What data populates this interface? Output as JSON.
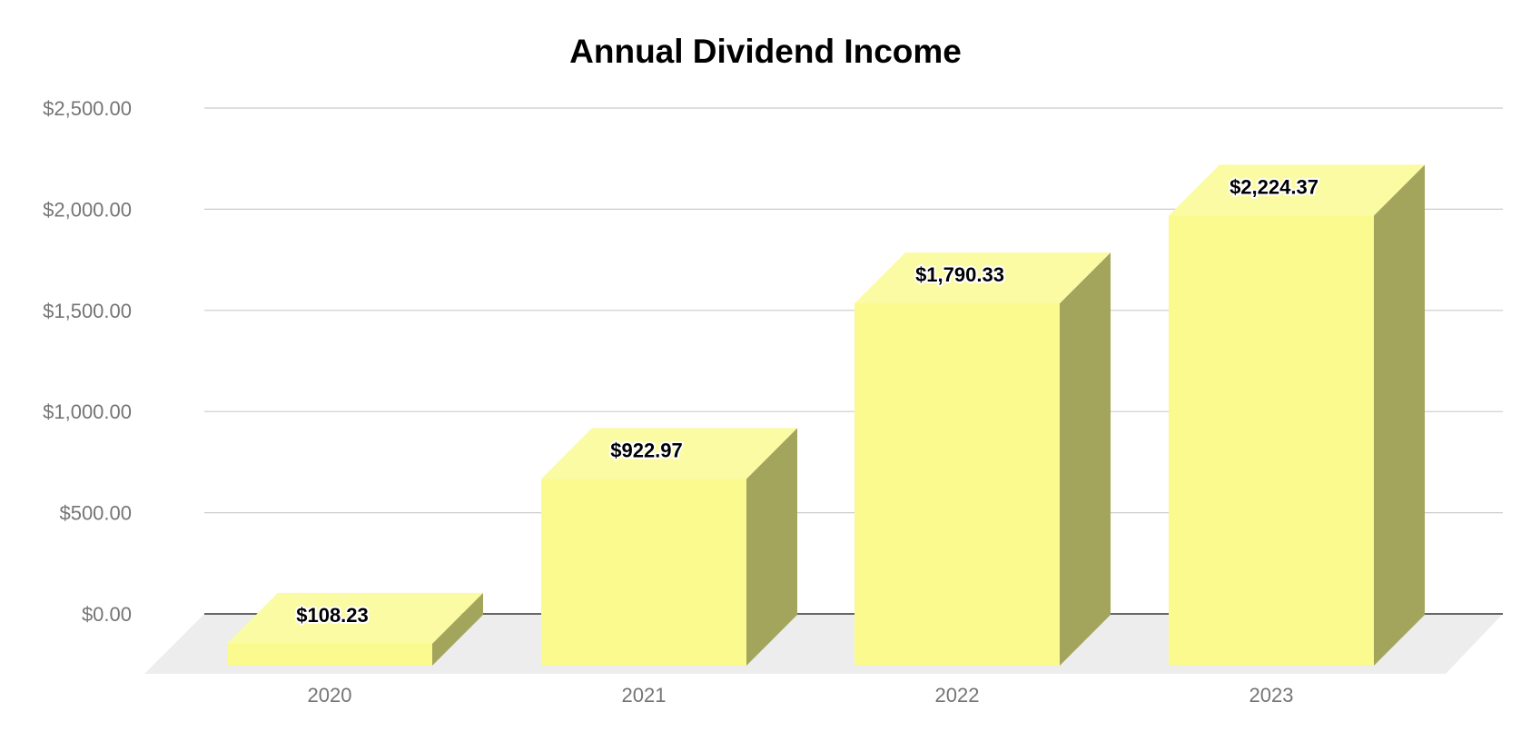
{
  "chart_data": {
    "type": "bar",
    "title": "Annual Dividend Income",
    "xlabel": "",
    "ylabel": "",
    "categories": [
      "2020",
      "2021",
      "2022",
      "2023"
    ],
    "values": [
      108.23,
      922.97,
      1790.33,
      2224.37
    ],
    "data_labels": [
      "$108.23",
      "$922.97",
      "$1,790.33",
      "$2,224.37"
    ],
    "y_ticks": [
      "$0.00",
      "$500.00",
      "$1,000.00",
      "$1,500.00",
      "$2,000.00",
      "$2,500.00"
    ],
    "ylim": [
      0,
      2500
    ],
    "grid": true,
    "legend": "none",
    "style": "3d",
    "colors": {
      "bar_front": "#fafa8f",
      "bar_top": "#fbfba3",
      "bar_side": "#a3a55c",
      "floor": "#ededed",
      "grid": "#cccccc",
      "axis": "#333333"
    }
  }
}
